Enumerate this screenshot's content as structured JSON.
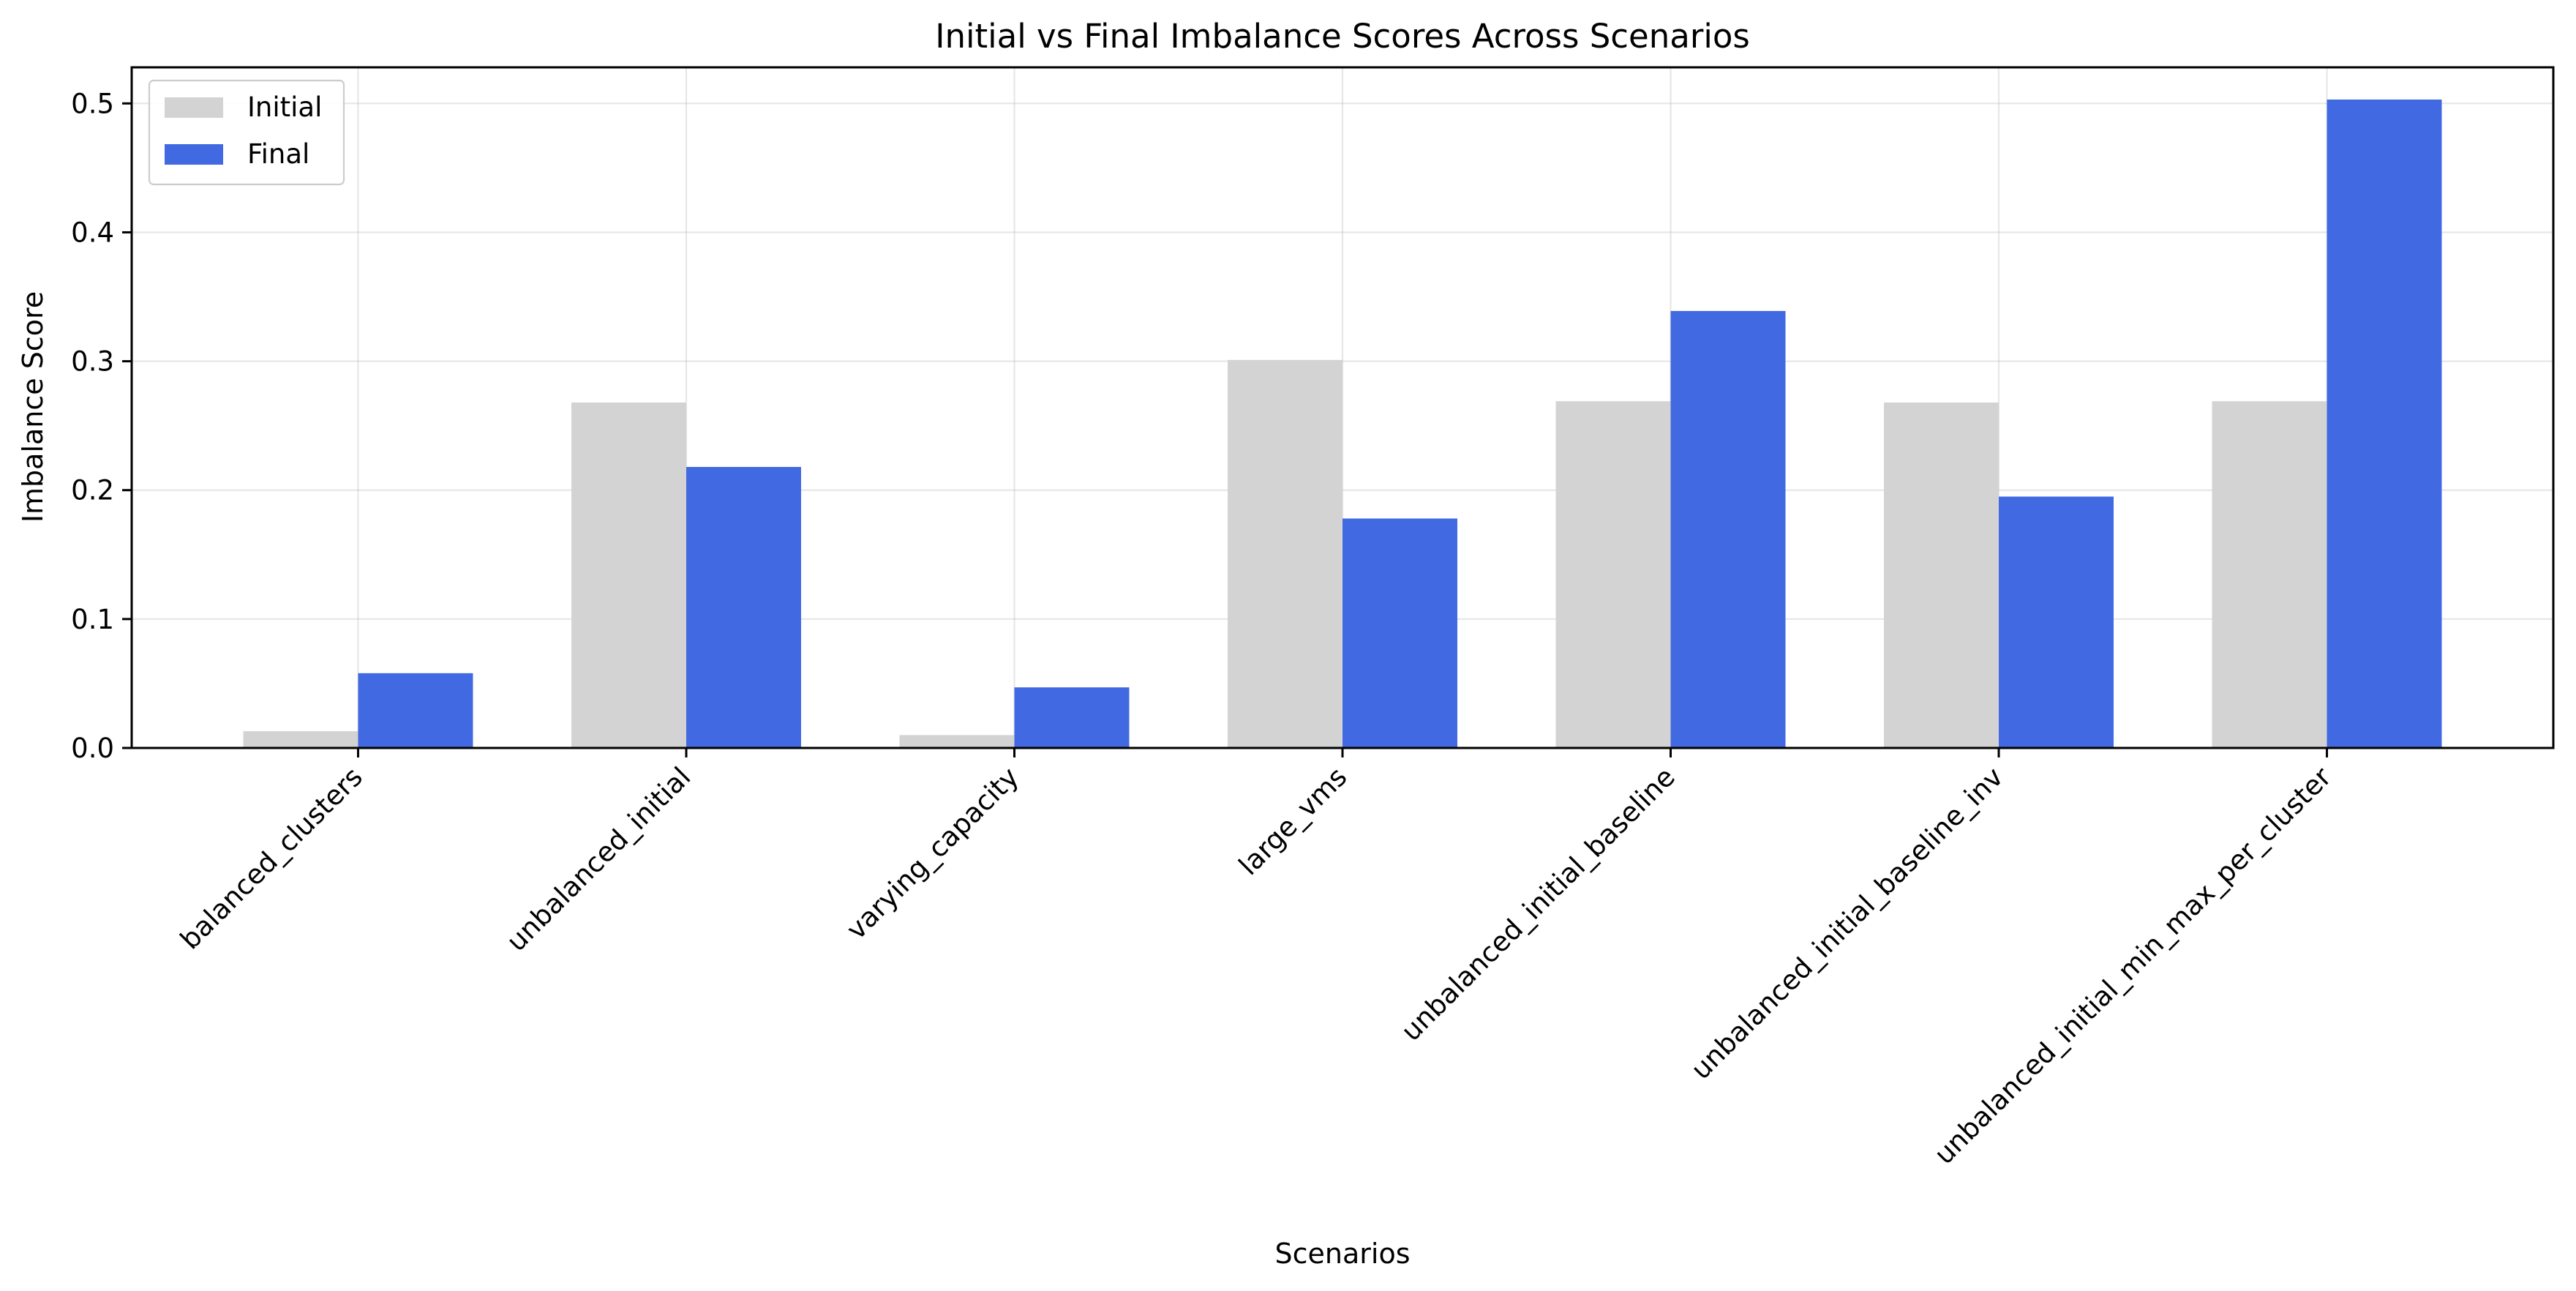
{
  "chart_data": {
    "type": "bar",
    "title": "Initial vs Final Imbalance Scores Across Scenarios",
    "xlabel": "Scenarios",
    "ylabel": "Imbalance Score",
    "categories": [
      "balanced_clusters",
      "unbalanced_initial",
      "varying_capacity",
      "large_vms",
      "unbalanced_initial_baseline",
      "unbalanced_initial_baseline_inv",
      "unbalanced_initial_min_max_per_cluster"
    ],
    "series": [
      {
        "name": "Initial",
        "color": "#d3d3d3",
        "values": [
          0.013,
          0.268,
          0.01,
          0.301,
          0.269,
          0.268,
          0.269
        ]
      },
      {
        "name": "Final",
        "color": "#4169e1",
        "values": [
          0.058,
          0.218,
          0.047,
          0.178,
          0.339,
          0.195,
          0.503
        ]
      }
    ],
    "ylim": [
      0,
      0.528
    ],
    "yticks": [
      0.0,
      0.1,
      0.2,
      0.3,
      0.4,
      0.5
    ],
    "ytick_labels": [
      "0.0",
      "0.1",
      "0.2",
      "0.3",
      "0.4",
      "0.5"
    ],
    "grid": true,
    "legend_position": "top-left"
  }
}
